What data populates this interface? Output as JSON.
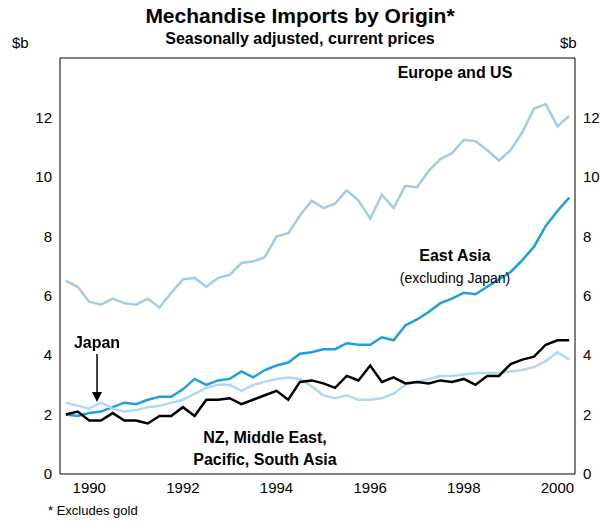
{
  "chart_data": {
    "type": "line",
    "title": "Mechandise Imports by Origin*",
    "subtitle": "Seasonally adjusted, current prices",
    "ylabel": "$b",
    "y2label": "$b",
    "note": "* Excludes gold",
    "x": [
      1990,
      1990.25,
      1990.5,
      1990.75,
      1991,
      1991.25,
      1991.5,
      1991.75,
      1992,
      1992.25,
      1992.5,
      1992.75,
      1993,
      1993.25,
      1993.5,
      1993.75,
      1994,
      1994.25,
      1994.5,
      1994.75,
      1995,
      1995.25,
      1995.5,
      1995.75,
      1996,
      1996.25,
      1996.5,
      1996.75,
      1997,
      1997.25,
      1997.5,
      1997.75,
      1998,
      1998.25,
      1998.5,
      1998.75,
      1999,
      1999.25,
      1999.5,
      1999.75,
      2000,
      2000.25,
      2000.5,
      2000.75
    ],
    "xlim": [
      1989.875,
      2000.875
    ],
    "xticks": [
      {
        "value": 1990.5,
        "label": "1990"
      },
      {
        "value": 1992.5,
        "label": "1992"
      },
      {
        "value": 1994.5,
        "label": "1994"
      },
      {
        "value": 1996.5,
        "label": "1996"
      },
      {
        "value": 1998.5,
        "label": "1998"
      },
      {
        "value": 2000.5,
        "label": "2000"
      }
    ],
    "ylim": [
      0,
      14
    ],
    "yticks": [
      0,
      2,
      4,
      6,
      8,
      10,
      12
    ],
    "y2lim": [
      0,
      14
    ],
    "y2ticks": [
      0,
      2,
      4,
      6,
      8,
      10,
      12
    ],
    "grid": false,
    "series": [
      {
        "name": "Europe and US",
        "color": "#a6cbe6",
        "values": [
          6.5,
          6.3,
          5.8,
          5.7,
          5.9,
          5.75,
          5.7,
          5.9,
          5.6,
          6.1,
          6.55,
          6.6,
          6.3,
          6.6,
          6.7,
          7.1,
          7.15,
          7.3,
          8.0,
          8.1,
          8.7,
          9.2,
          8.95,
          9.1,
          9.55,
          9.2,
          8.6,
          9.4,
          8.95,
          9.7,
          9.65,
          10.2,
          10.6,
          10.8,
          11.25,
          11.2,
          10.9,
          10.55,
          10.9,
          11.5,
          12.3,
          12.45,
          11.7,
          12.05
        ]
      },
      {
        "name": "East Asia\n(excluding Japan)",
        "color": "#1ea0e0",
        "values": [
          2.0,
          1.95,
          2.05,
          2.1,
          2.25,
          2.4,
          2.35,
          2.5,
          2.6,
          2.6,
          2.85,
          3.2,
          3.0,
          3.15,
          3.2,
          3.45,
          3.25,
          3.5,
          3.65,
          3.75,
          4.05,
          4.1,
          4.2,
          4.2,
          4.4,
          4.35,
          4.35,
          4.6,
          4.5,
          5.0,
          5.2,
          5.45,
          5.75,
          5.9,
          6.1,
          6.05,
          6.3,
          6.55,
          6.8,
          7.2,
          7.65,
          8.35,
          8.85,
          9.3
        ]
      },
      {
        "name": "Japan",
        "color": "#b3d9f2",
        "values": [
          2.4,
          2.3,
          2.2,
          2.4,
          2.2,
          2.1,
          2.15,
          2.25,
          2.3,
          2.4,
          2.5,
          2.7,
          2.9,
          3.0,
          3.0,
          2.8,
          3.0,
          3.1,
          3.2,
          3.25,
          3.2,
          2.95,
          2.65,
          2.55,
          2.65,
          2.5,
          2.5,
          2.55,
          2.7,
          3.0,
          3.1,
          3.2,
          3.3,
          3.3,
          3.35,
          3.4,
          3.4,
          3.4,
          3.45,
          3.5,
          3.6,
          3.8,
          4.1,
          3.85
        ]
      },
      {
        "name": "NZ, Middle East,\nPacific, South Asia",
        "color": "#000000",
        "values": [
          2.0,
          2.1,
          1.8,
          1.8,
          2.05,
          1.8,
          1.8,
          1.7,
          1.95,
          1.95,
          2.25,
          1.95,
          2.5,
          2.5,
          2.55,
          2.35,
          2.5,
          2.65,
          2.8,
          2.5,
          3.1,
          3.15,
          3.05,
          2.9,
          3.3,
          3.15,
          3.65,
          3.1,
          3.25,
          3.05,
          3.1,
          3.05,
          3.15,
          3.1,
          3.2,
          3.0,
          3.3,
          3.3,
          3.7,
          3.85,
          3.95,
          4.35,
          4.5,
          4.5
        ]
      }
    ]
  }
}
